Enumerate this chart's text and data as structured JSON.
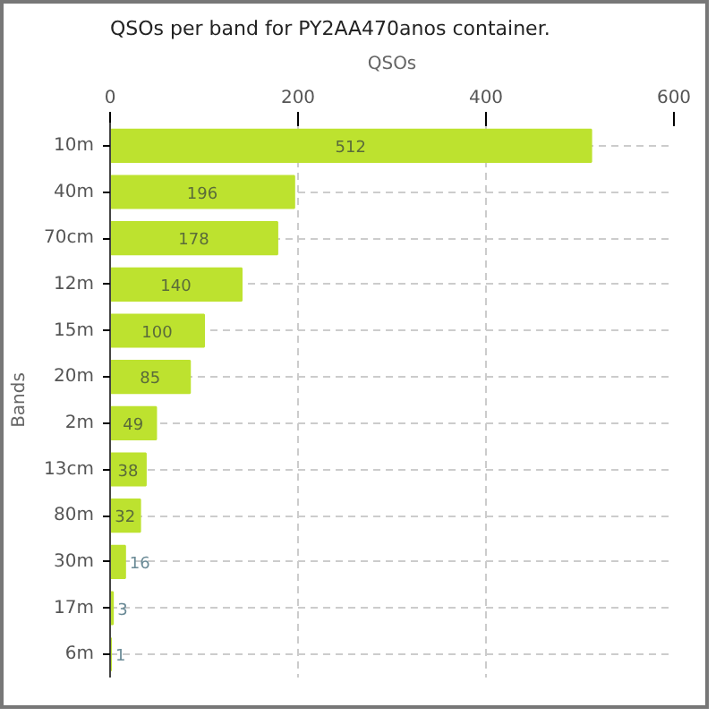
{
  "chart_data": {
    "type": "bar",
    "orientation": "horizontal",
    "title": "QSOs per band for PY2AA470anos container.",
    "xlabel": "QSOs",
    "ylabel": "Bands",
    "categories": [
      "10m",
      "40m",
      "70cm",
      "12m",
      "15m",
      "20m",
      "2m",
      "13cm",
      "80m",
      "30m",
      "17m",
      "6m"
    ],
    "values": [
      512,
      196,
      178,
      140,
      100,
      85,
      49,
      38,
      32,
      16,
      3,
      1
    ],
    "color": "#bde22f",
    "xlim": [
      0,
      600
    ],
    "xticks": [
      0,
      200,
      400,
      600
    ],
    "grid": true,
    "data_labels": true
  }
}
